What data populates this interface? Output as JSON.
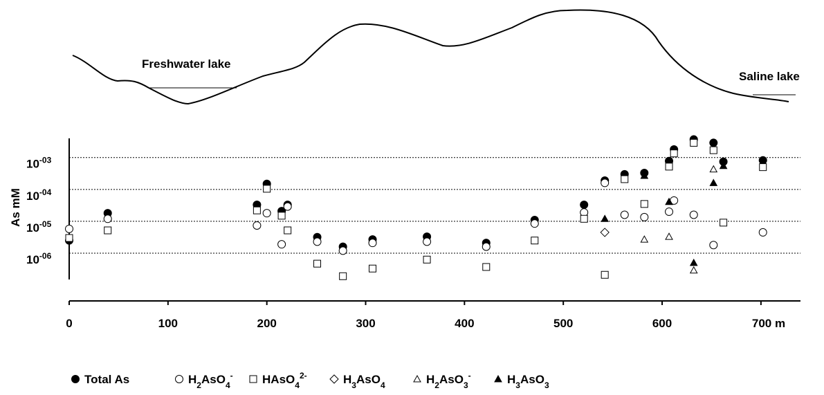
{
  "chart_data": {
    "type": "scatter",
    "annotations": [
      "Freshwater lake",
      "Saline lake"
    ],
    "y_label": "As mM",
    "y_log": true,
    "grid": true,
    "xlim": [
      0,
      740
    ],
    "xticks": [
      0,
      100,
      200,
      300,
      400,
      500,
      600,
      {
        "value": 700,
        "label": "700 m"
      }
    ],
    "ylim": [
      1.5e-07,
      0.004
    ],
    "yticks": [
      {
        "value": 0.001,
        "label": "10-03"
      },
      {
        "value": 0.0001,
        "label": "10-04"
      },
      {
        "value": 1e-05,
        "label": "10-05"
      },
      {
        "value": 1e-06,
        "label": "10-06"
      }
    ],
    "series": [
      {
        "name": "Total As",
        "marker": "circle",
        "filled": true,
        "color": "#000000",
        "x": [
          0,
          39,
          190,
          200,
          215,
          221,
          251,
          277,
          307,
          362,
          422,
          471,
          521,
          542,
          562,
          582,
          607,
          612,
          632,
          652,
          662,
          702
        ],
        "values": [
          2.5e-06,
          1.8e-05,
          3.3e-05,
          0.00015,
          2.1e-05,
          3.3e-05,
          3.2e-06,
          1.6e-06,
          2.7e-06,
          3.3e-06,
          2.1e-06,
          1.1e-05,
          3.3e-05,
          0.00019,
          0.0003,
          0.00033,
          0.00078,
          0.0018,
          0.0037,
          0.0029,
          0.00074,
          0.00082
        ]
      },
      {
        "name": "H2AsO4-",
        "marker": "circle",
        "filled": false,
        "color": "#000000",
        "x": [
          0,
          39,
          190,
          200,
          215,
          221,
          251,
          277,
          307,
          362,
          422,
          471,
          521,
          542,
          562,
          582,
          607,
          612,
          632,
          652,
          702
        ],
        "values": [
          5.8e-06,
          1.2e-05,
          7.4e-06,
          1.8e-05,
          1.9e-06,
          2.9e-05,
          2.3e-06,
          1.2e-06,
          2.1e-06,
          2.3e-06,
          1.6e-06,
          8.5e-06,
          1.9e-05,
          0.00016,
          1.6e-05,
          1.35e-05,
          2e-05,
          4.5e-05,
          1.6e-05,
          1.8e-06,
          4.5e-06
        ]
      },
      {
        "name": "HAsO42-",
        "marker": "square",
        "filled": false,
        "color": "#000000",
        "x": [
          0,
          39,
          190,
          200,
          215,
          221,
          251,
          277,
          307,
          362,
          422,
          471,
          521,
          542,
          562,
          582,
          607,
          612,
          632,
          652,
          662,
          702
        ],
        "values": [
          3e-06,
          5.2e-06,
          2.2e-05,
          0.000105,
          1.5e-05,
          5.2e-06,
          4.7e-07,
          1.9e-07,
          3.3e-07,
          6.3e-07,
          3.7e-07,
          2.5e-06,
          1.2e-05,
          2.1e-07,
          0.00021,
          3.5e-05,
          0.00052,
          0.00135,
          0.0029,
          0.0017,
          9.1e-06,
          0.0005
        ]
      },
      {
        "name": "H3AsO4",
        "marker": "diamond",
        "filled": false,
        "color": "#000000",
        "x": [
          542
        ],
        "values": [
          4.5e-06
        ]
      },
      {
        "name": "H2AsO3-",
        "marker": "triangle",
        "filled": false,
        "color": "#000000",
        "x": [
          582,
          607,
          632,
          652
        ],
        "values": [
          2.7e-06,
          3.3e-06,
          2.9e-07,
          0.00043
        ]
      },
      {
        "name": "H3AsO3",
        "marker": "triangle",
        "filled": true,
        "color": "#000000",
        "x": [
          542,
          582,
          607,
          632,
          652,
          662
        ],
        "values": [
          1.2e-05,
          0.00027,
          4.1e-05,
          5e-07,
          0.00016,
          0.00055
        ]
      }
    ]
  }
}
